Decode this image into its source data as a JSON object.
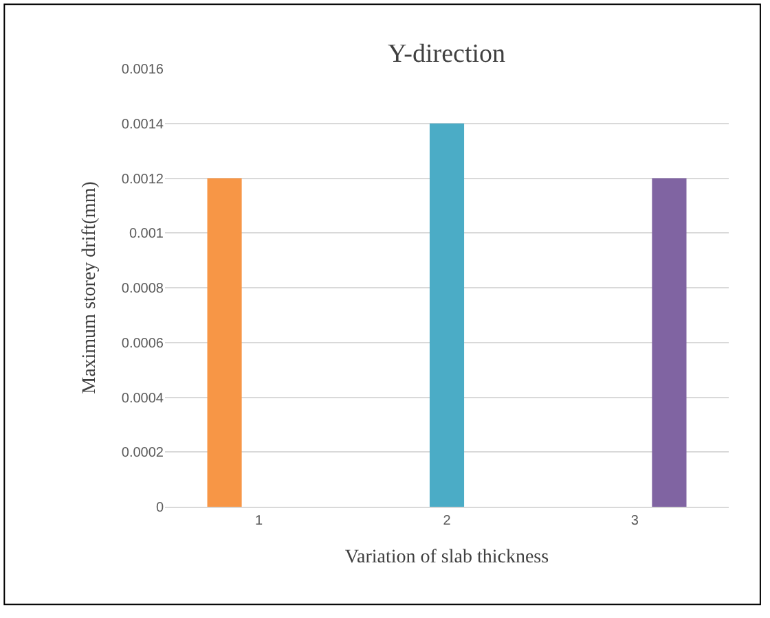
{
  "chart_data": {
    "type": "bar",
    "title": "Y-direction",
    "xlabel": "Variation of slab thickness",
    "ylabel": "Maximum storey drift(mm)",
    "categories": [
      "1",
      "2",
      "3"
    ],
    "series": [
      {
        "color": "#f79646",
        "values": [
          0.0012,
          null,
          null
        ]
      },
      {
        "color": "#4bacc6",
        "values": [
          null,
          0.0014,
          null
        ]
      },
      {
        "color": "#8064a2",
        "values": [
          null,
          null,
          0.0012
        ]
      }
    ],
    "ylim": [
      0,
      0.0016
    ],
    "yticks": [
      0,
      0.0002,
      0.0004,
      0.0006,
      0.0008,
      0.001,
      0.0012,
      0.0014,
      0.0016
    ],
    "grid": "y"
  }
}
